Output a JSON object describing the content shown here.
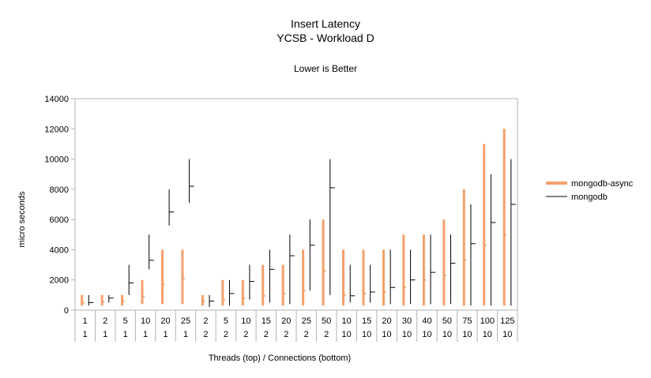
{
  "chart_data": {
    "type": "bar",
    "title": "Insert Latency",
    "subtitle": "YCSB - Workload D",
    "note": "Lower is Better",
    "ylabel": "micro seconds",
    "xlabel": "Threads (top) / Connections (bottom)",
    "ylim": [
      0,
      14000
    ],
    "yticks": [
      0,
      2000,
      4000,
      6000,
      8000,
      10000,
      12000,
      14000
    ],
    "grid": false,
    "legend_position": "right",
    "categories": [
      {
        "top": "1",
        "bottom": "1"
      },
      {
        "top": "2",
        "bottom": "1"
      },
      {
        "top": "5",
        "bottom": "1"
      },
      {
        "top": "10",
        "bottom": "1"
      },
      {
        "top": "20",
        "bottom": "1"
      },
      {
        "top": "25",
        "bottom": "1"
      },
      {
        "top": "2",
        "bottom": "2"
      },
      {
        "top": "5",
        "bottom": "2"
      },
      {
        "top": "10",
        "bottom": "2"
      },
      {
        "top": "15",
        "bottom": "2"
      },
      {
        "top": "20",
        "bottom": "2"
      },
      {
        "top": "25",
        "bottom": "2"
      },
      {
        "top": "50",
        "bottom": "2"
      },
      {
        "top": "10",
        "bottom": "10"
      },
      {
        "top": "15",
        "bottom": "10"
      },
      {
        "top": "20",
        "bottom": "10"
      },
      {
        "top": "30",
        "bottom": "10"
      },
      {
        "top": "40",
        "bottom": "10"
      },
      {
        "top": "50",
        "bottom": "10"
      },
      {
        "top": "75",
        "bottom": "10"
      },
      {
        "top": "100",
        "bottom": "10"
      },
      {
        "top": "125",
        "bottom": "10"
      }
    ],
    "series": [
      {
        "name": "mongodb-async",
        "color": "#f4a06c",
        "low": [
          300,
          300,
          300,
          400,
          400,
          400,
          300,
          300,
          300,
          300,
          300,
          300,
          300,
          300,
          300,
          300,
          300,
          300,
          300,
          300,
          300,
          300
        ],
        "high": [
          1000,
          1000,
          1000,
          2000,
          4000,
          4000,
          1000,
          2000,
          2000,
          3000,
          3000,
          4000,
          6000,
          4000,
          4000,
          4000,
          5000,
          5000,
          6000,
          8000,
          11000,
          12000
        ],
        "mid": [
          500,
          550,
          600,
          900,
          1700,
          2100,
          600,
          700,
          800,
          950,
          1100,
          1300,
          2600,
          1000,
          1100,
          1200,
          1500,
          2000,
          2300,
          3300,
          4300,
          5000
        ]
      },
      {
        "name": "mongodb",
        "color": "#000000",
        "low": [
          300,
          500,
          1000,
          2700,
          5600,
          7100,
          200,
          300,
          700,
          500,
          400,
          1300,
          1000,
          500,
          500,
          400,
          400,
          400,
          400,
          300,
          300,
          300
        ],
        "high": [
          1000,
          1000,
          3000,
          5000,
          8000,
          10000,
          1000,
          2000,
          3000,
          4000,
          5000,
          6000,
          10000,
          3000,
          3000,
          4000,
          4000,
          5000,
          5000,
          7000,
          9000,
          10000
        ],
        "mid": [
          500,
          800,
          1800,
          3300,
          6500,
          8200,
          600,
          1100,
          1900,
          2700,
          3600,
          4300,
          8100,
          950,
          1200,
          1500,
          2000,
          2500,
          3100,
          4400,
          5800,
          7000
        ]
      }
    ]
  }
}
